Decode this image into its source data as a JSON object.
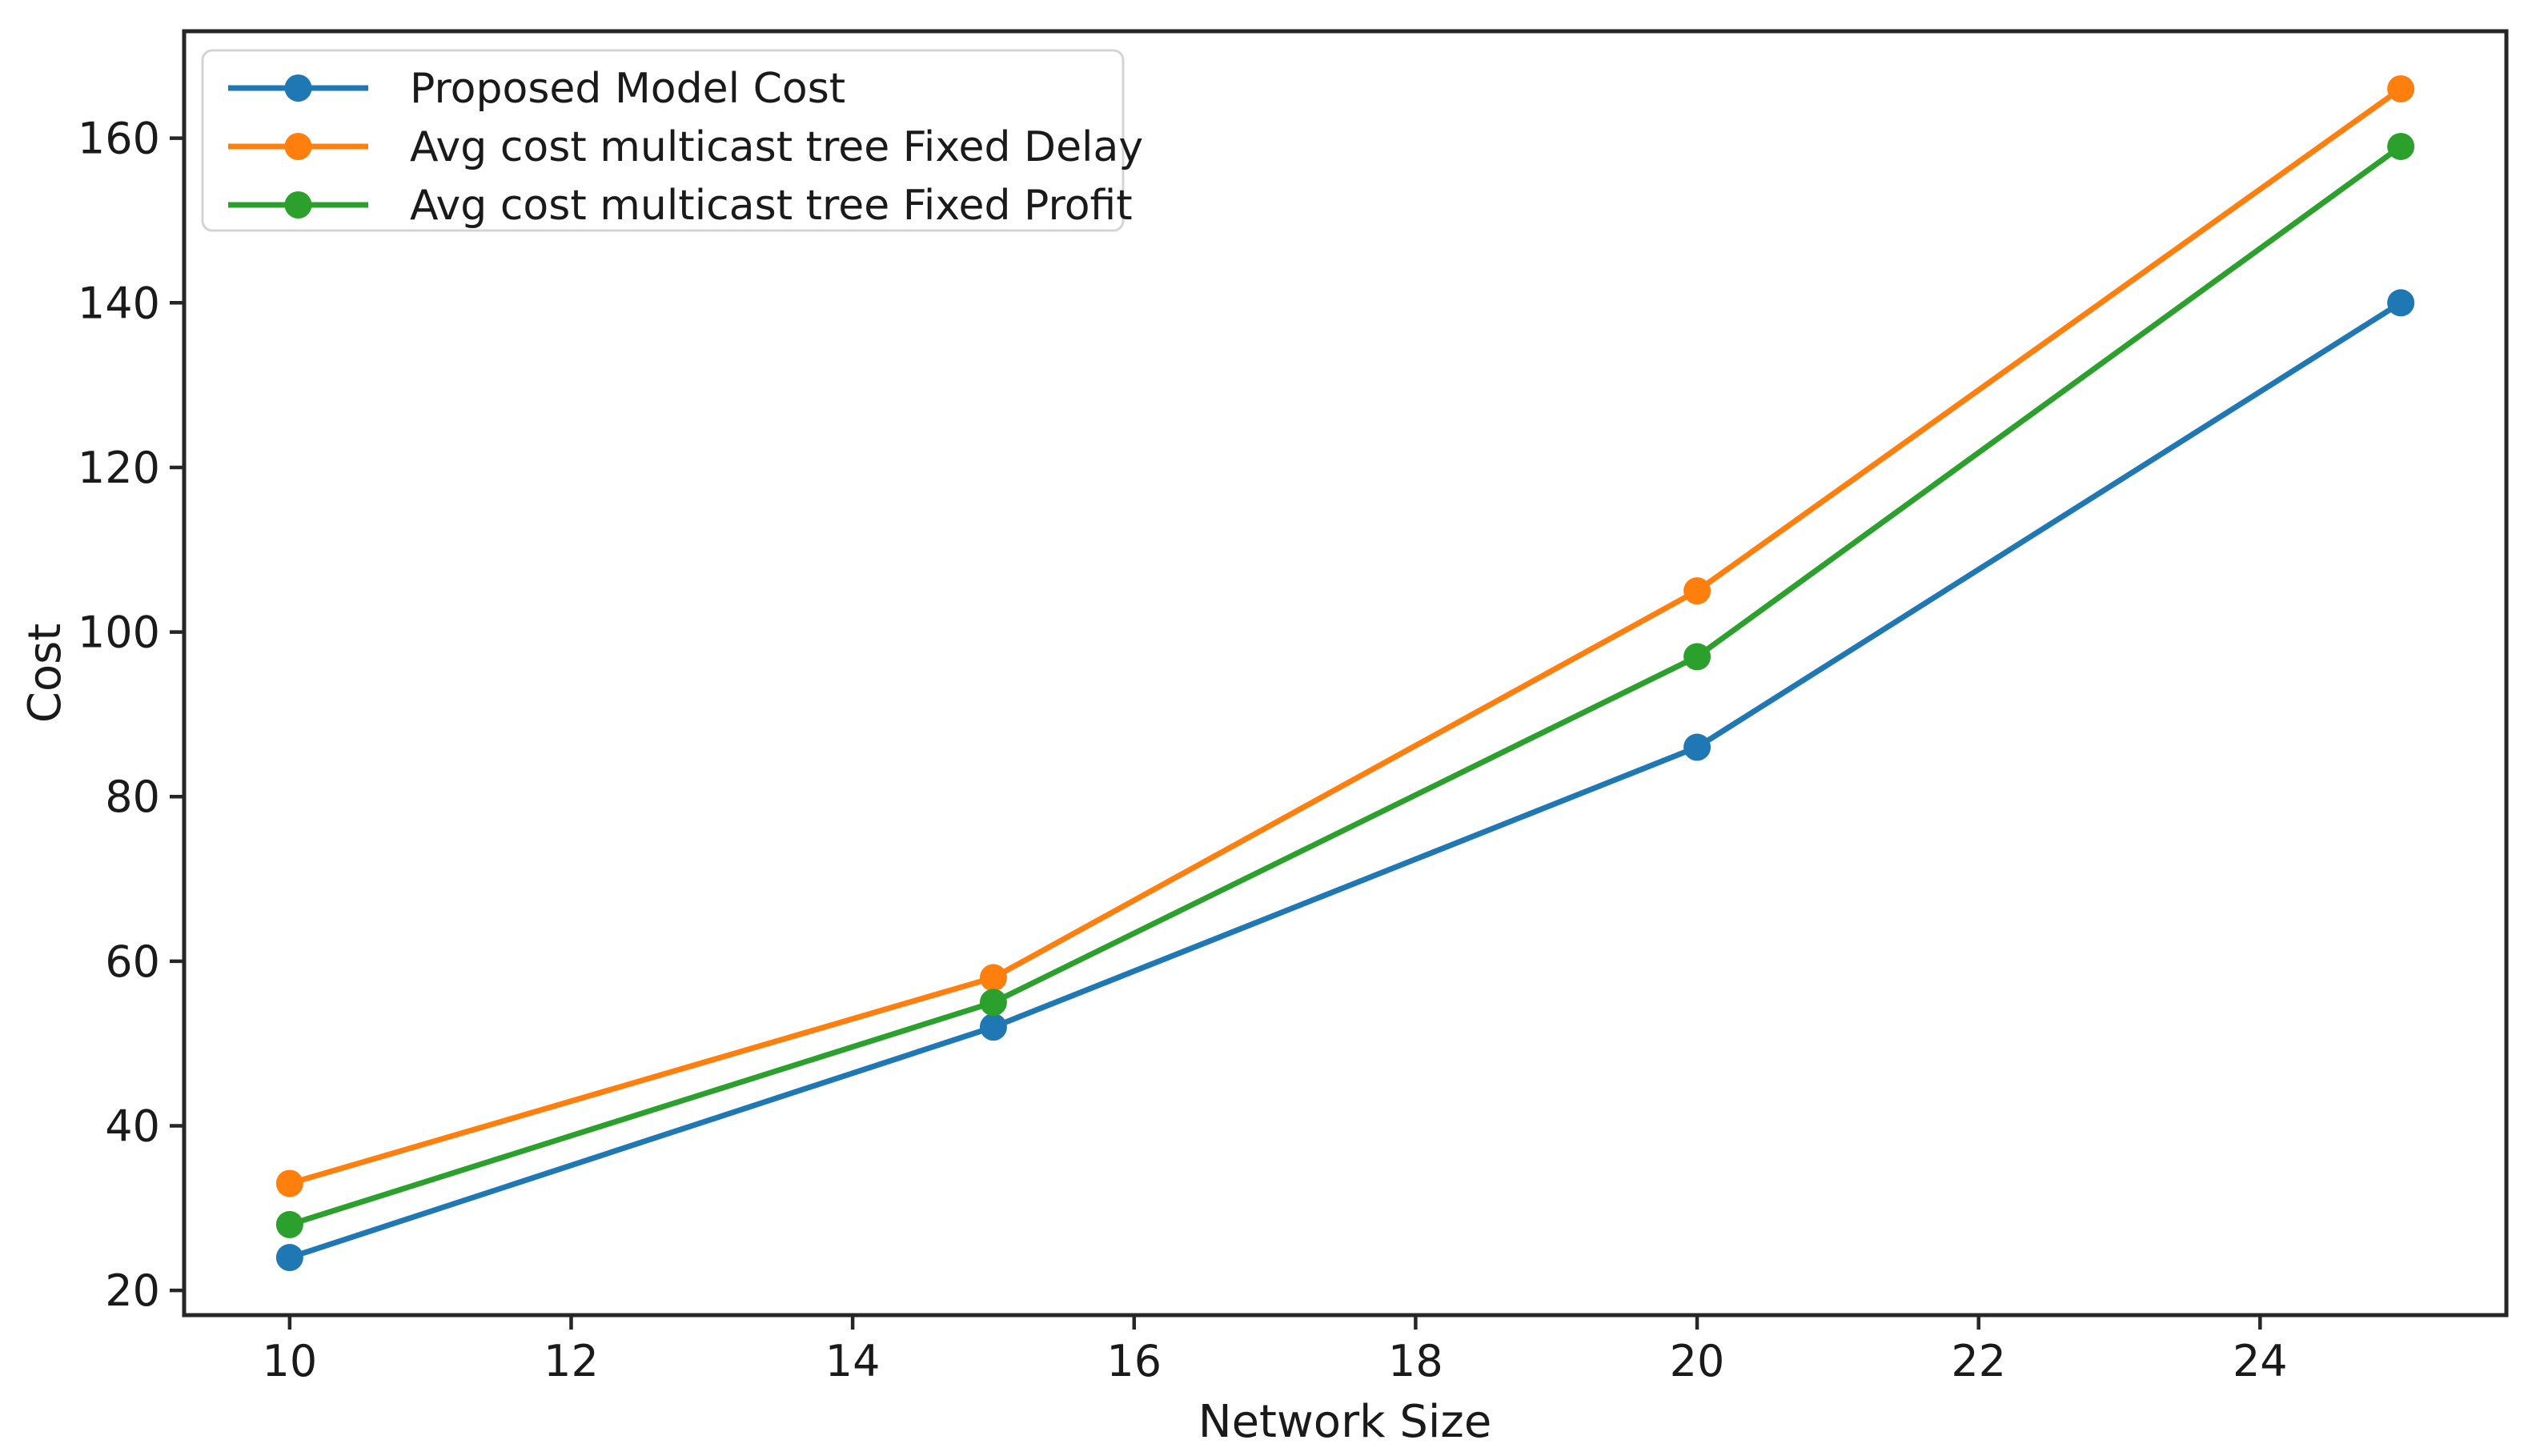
{
  "figure": {
    "background": "#ffffff",
    "axis_color": "#262626",
    "text_color": "#1a1a1a",
    "legend_border_color": "#d4d4d4"
  },
  "chart_data": {
    "type": "line",
    "title": "",
    "xlabel": "Network Size",
    "ylabel": "Cost",
    "x": [
      10,
      15,
      20,
      25
    ],
    "series": [
      {
        "name": "Proposed Model Cost",
        "color": "#1f77b4",
        "values": [
          24,
          52,
          86,
          140
        ]
      },
      {
        "name": "Avg cost multicast tree Fixed Delay",
        "color": "#ff7f0e",
        "values": [
          33,
          58,
          105,
          166
        ]
      },
      {
        "name": "Avg cost multicast tree Fixed Profit",
        "color": "#2ca02c",
        "values": [
          28,
          55,
          97,
          159
        ]
      }
    ],
    "x_ticks": [
      10,
      12,
      14,
      16,
      18,
      20,
      22,
      24
    ],
    "y_ticks": [
      20,
      40,
      60,
      80,
      100,
      120,
      140,
      160
    ],
    "xlim": [
      9.25,
      25.75
    ],
    "ylim": [
      17,
      173
    ],
    "grid": false,
    "legend_position": "upper left",
    "marker": "circle"
  }
}
